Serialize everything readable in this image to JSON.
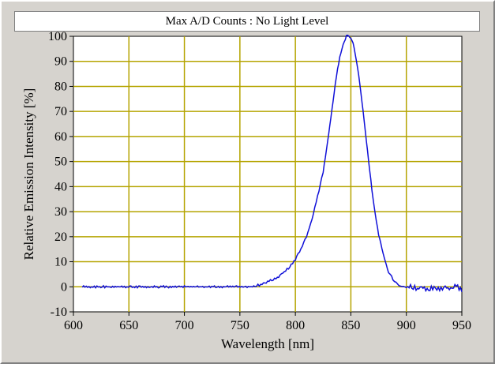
{
  "chart_data": {
    "type": "line",
    "title": "Max A/D Counts : No Light Level",
    "xlabel": "Wavelength [nm]",
    "ylabel": "Relative Emission Intensity [%]",
    "xlim": [
      600,
      950
    ],
    "ylim": [
      -10,
      100
    ],
    "x_ticks": [
      "600",
      "650",
      "700",
      "750",
      "800",
      "850",
      "900",
      "950"
    ],
    "y_ticks": [
      "-10",
      "0",
      "10",
      "20",
      "30",
      "40",
      "50",
      "60",
      "70",
      "80",
      "90",
      "100"
    ],
    "grid": true,
    "colors": {
      "background": "#ffffff",
      "grid": "#b5a400",
      "line": "#1010d8",
      "frame": "#d6d3ce"
    },
    "series": [
      {
        "x": [
          608,
          620,
          640,
          660,
          680,
          700,
          720,
          740,
          760,
          770,
          775,
          780,
          785,
          790,
          795,
          800,
          805,
          810,
          815,
          820,
          825,
          828,
          831,
          834,
          837,
          840,
          843,
          846,
          848,
          850,
          852,
          854,
          857,
          860,
          863,
          866,
          869,
          872,
          875,
          878,
          881,
          884,
          888,
          892,
          896,
          900,
          905,
          910,
          915,
          920,
          925,
          930,
          935,
          940,
          945,
          950
        ],
        "y": [
          0,
          0,
          0,
          0,
          0,
          0,
          0,
          0,
          0,
          1,
          2,
          3,
          4,
          6,
          8,
          11,
          15,
          20,
          27,
          36,
          46,
          55,
          64,
          74,
          84,
          92,
          97,
          100,
          100,
          99,
          97,
          93,
          85,
          74,
          62,
          50,
          39,
          29,
          21,
          15,
          10,
          6,
          3,
          1,
          0,
          0,
          0,
          -1,
          0,
          -1,
          0,
          -1,
          0,
          -1,
          1,
          -2
        ]
      }
    ]
  }
}
